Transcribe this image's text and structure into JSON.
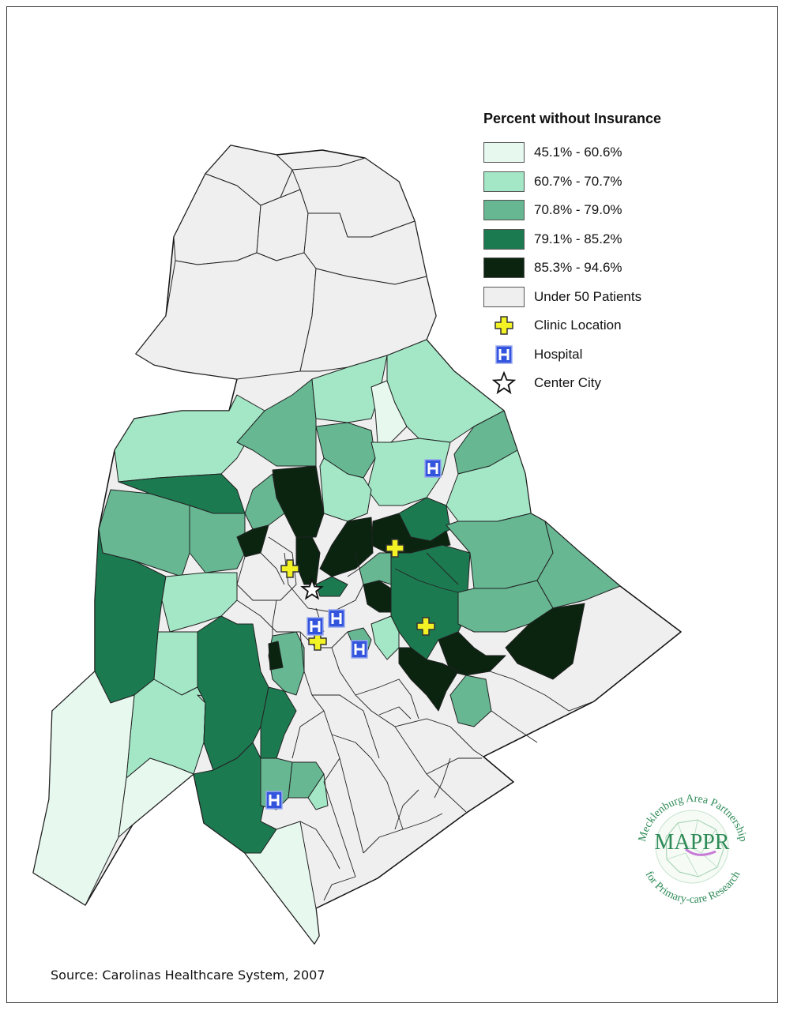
{
  "legend": {
    "title": "Percent without Insurance",
    "classes": [
      {
        "label": "45.1% - 60.6%",
        "color": "#e7f8ef"
      },
      {
        "label": "60.7% - 70.7%",
        "color": "#a3e7c6"
      },
      {
        "label": "70.8% - 79.0%",
        "color": "#66b792"
      },
      {
        "label": "79.1% - 85.2%",
        "color": "#1c7a51"
      },
      {
        "label": "85.3% - 94.6%",
        "color": "#0a2410"
      },
      {
        "label": "Under 50 Patients",
        "color": "#eeefee"
      }
    ],
    "symbols": [
      {
        "label": "Clinic Location",
        "icon": "clinic-cross-icon"
      },
      {
        "label": "Hospital",
        "icon": "hospital-h-icon"
      },
      {
        "label": "Center City",
        "icon": "star-icon"
      }
    ]
  },
  "source": "Source: Carolinas Healthcare System, 2007",
  "logo": {
    "text_top": "Mecklenburg Area Partnership",
    "text_bottom": "for Primary-care Research",
    "acronym": "MAPPR"
  },
  "colors": {
    "boundary": "#222222",
    "clinic_fill": "#f2f224",
    "hospital_fill": "#3355dd",
    "logo_green": "#2e8b57"
  }
}
